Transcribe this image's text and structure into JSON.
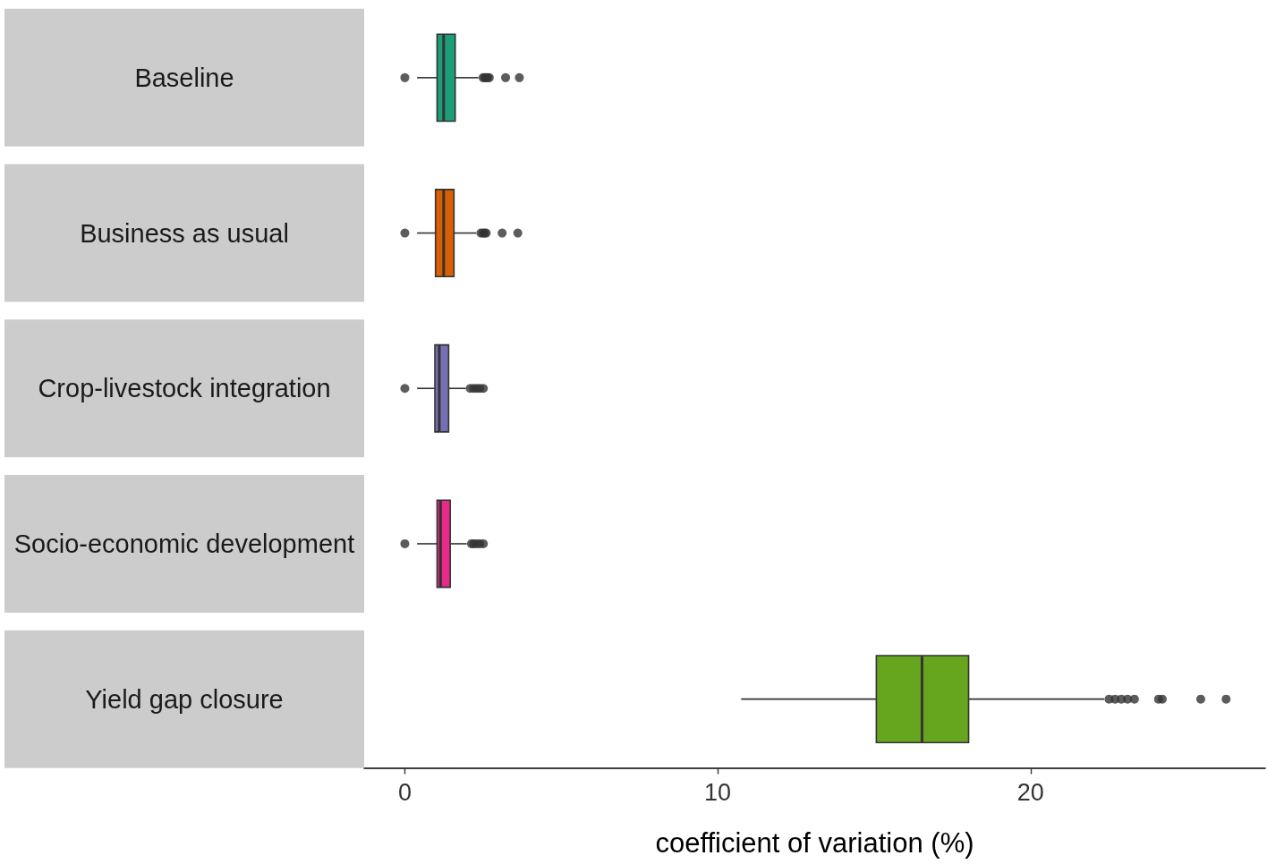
{
  "chart_data": {
    "type": "box",
    "orientation": "horizontal",
    "categories": [
      "Baseline",
      "Business as usual",
      "Crop-livestock integration",
      "Socio-economic development",
      "Yield gap closure"
    ],
    "colors": [
      "#1b9e77",
      "#d95f02",
      "#7570b3",
      "#e7298a",
      "#66a61e"
    ],
    "boxes": [
      {
        "low": 0.39,
        "q1": 1.03,
        "median": 1.24,
        "q3": 1.61,
        "high": 2.35,
        "outliers": [
          0,
          2.5,
          2.55,
          2.6,
          2.65,
          2.7,
          3.22,
          3.66
        ]
      },
      {
        "low": 0.39,
        "q1": 0.98,
        "median": 1.24,
        "q3": 1.57,
        "high": 2.28,
        "outliers": [
          0,
          2.43,
          2.5,
          2.55,
          2.6,
          3.11,
          3.61
        ]
      },
      {
        "low": 0.39,
        "q1": 0.96,
        "median": 1.1,
        "q3": 1.4,
        "high": 1.95,
        "outliers": [
          0,
          2.09,
          2.2,
          2.3,
          2.4,
          2.51
        ]
      },
      {
        "low": 0.39,
        "q1": 1.03,
        "median": 1.14,
        "q3": 1.45,
        "high": 1.98,
        "outliers": [
          0,
          2.13,
          2.2,
          2.3,
          2.4,
          2.51
        ]
      },
      {
        "low": 10.75,
        "q1": 15.07,
        "median": 16.53,
        "q3": 18.02,
        "high": 22.36,
        "outliers": [
          22.51,
          22.7,
          22.9,
          23.1,
          23.32,
          24.09,
          24.21,
          25.44,
          26.25
        ]
      }
    ],
    "xlim": [
      -1.3,
      27.5
    ],
    "xticks": [
      0,
      10,
      20
    ],
    "xlabel": "coefficient of variation (%)",
    "grid": false
  }
}
